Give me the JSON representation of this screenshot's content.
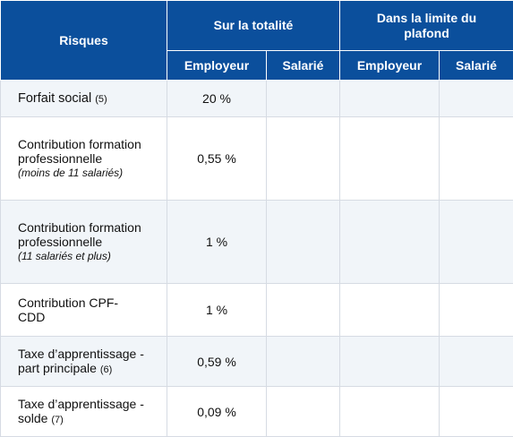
{
  "header": {
    "risques": "Risques",
    "groups": [
      {
        "label": "Sur la totalité"
      },
      {
        "label": "Dans la limite du plafond"
      }
    ],
    "sub": [
      "Employeur",
      "Salarié",
      "Employeur",
      "Salarié"
    ]
  },
  "rows": [
    {
      "label": "Forfait social",
      "note": "(5)",
      "values": [
        "20 %",
        "",
        "",
        ""
      ]
    },
    {
      "label": "Contribution formation professionnelle",
      "sub": "(moins de 11 salariés)",
      "values": [
        "0,55 %",
        "",
        "",
        ""
      ]
    },
    {
      "label": "Contribution formation professionnelle",
      "sub": "(11 salariés et plus)",
      "values": [
        "1 %",
        "",
        "",
        ""
      ]
    },
    {
      "label": "Contribution CPF-CDD",
      "values": [
        "1 %",
        "",
        "",
        ""
      ]
    },
    {
      "label": "Taxe d’apprentissage - part principale",
      "note": "(6)",
      "values": [
        "0,59 %",
        "",
        "",
        ""
      ]
    },
    {
      "label": "Taxe d’apprentissage - solde",
      "note": "(7)",
      "values": [
        "0,09 %",
        "",
        "",
        ""
      ]
    }
  ],
  "colors": {
    "header_bg": "#0b4f9c",
    "row_alt_bg": "#f1f5f9",
    "border": "#d6dbe3"
  }
}
